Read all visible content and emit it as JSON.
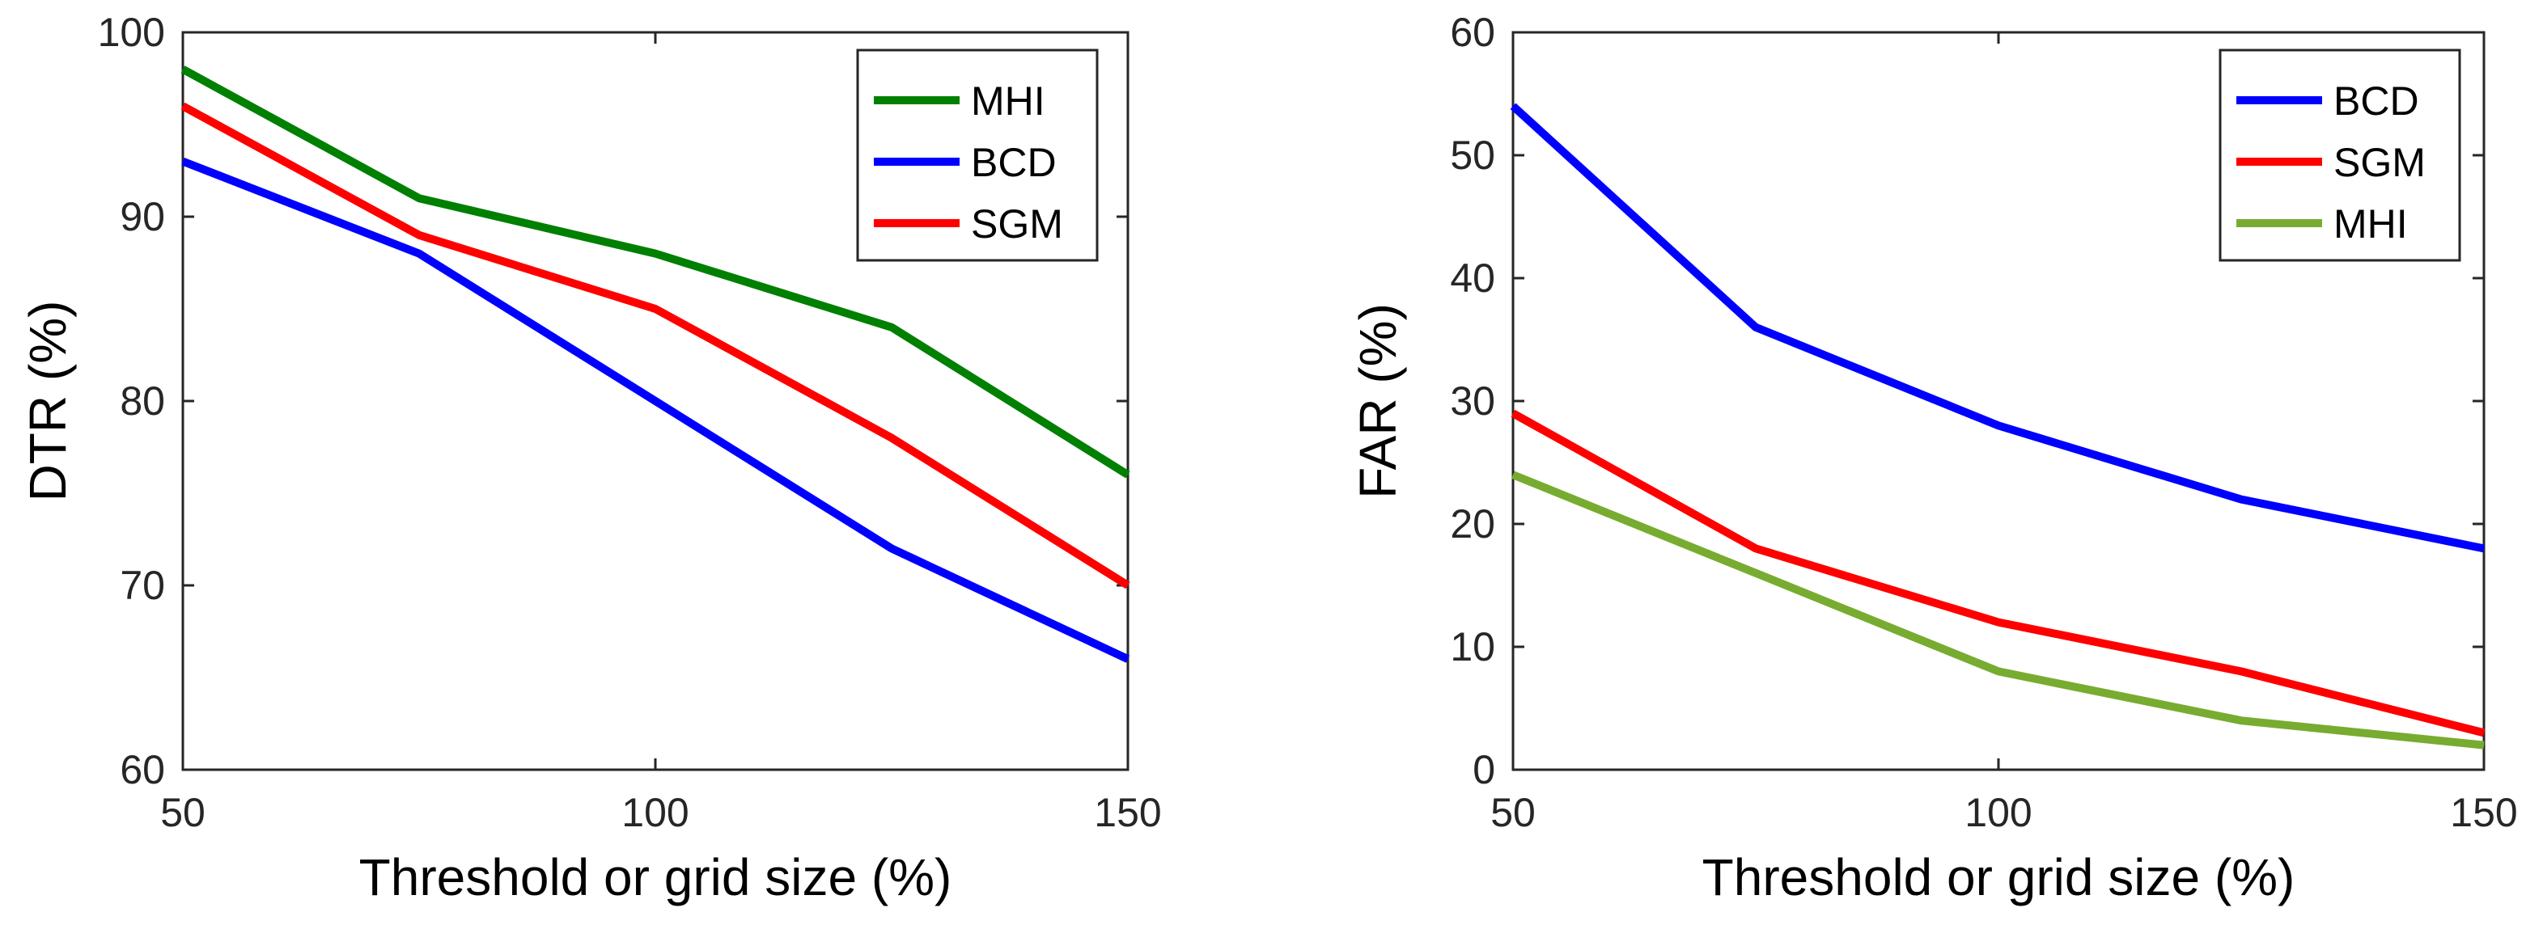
{
  "chart_data": [
    {
      "type": "line",
      "xlabel": "Threshold or grid size (%)",
      "ylabel": "DTR (%)",
      "xlim": [
        50,
        150
      ],
      "ylim": [
        60,
        100
      ],
      "xticks": [
        50,
        100,
        150
      ],
      "yticks": [
        60,
        70,
        80,
        90,
        100
      ],
      "legend_position": "top-right",
      "x": [
        50,
        75,
        100,
        125,
        150
      ],
      "series": [
        {
          "name": "MHI",
          "color": "#008000",
          "values": [
            98,
            91,
            88,
            84,
            76
          ]
        },
        {
          "name": "BCD",
          "color": "#0000ff",
          "values": [
            93,
            88,
            80,
            72,
            66
          ]
        },
        {
          "name": "SGM",
          "color": "#ff0000",
          "values": [
            96,
            89,
            85,
            78,
            70
          ]
        }
      ]
    },
    {
      "type": "line",
      "xlabel": "Threshold or grid size (%)",
      "ylabel": "FAR (%)",
      "xlim": [
        50,
        150
      ],
      "ylim": [
        0,
        60
      ],
      "xticks": [
        50,
        100,
        150
      ],
      "yticks": [
        0,
        10,
        20,
        30,
        40,
        50,
        60
      ],
      "legend_position": "top-right",
      "x": [
        50,
        75,
        100,
        125,
        150
      ],
      "series": [
        {
          "name": "BCD",
          "color": "#0000ff",
          "values": [
            54,
            36,
            28,
            22,
            18
          ]
        },
        {
          "name": "SGM",
          "color": "#ff0000",
          "values": [
            29,
            18,
            12,
            8,
            3
          ]
        },
        {
          "name": "MHI",
          "color": "#77ac30",
          "values": [
            24,
            16,
            8,
            4,
            2
          ]
        }
      ]
    }
  ]
}
